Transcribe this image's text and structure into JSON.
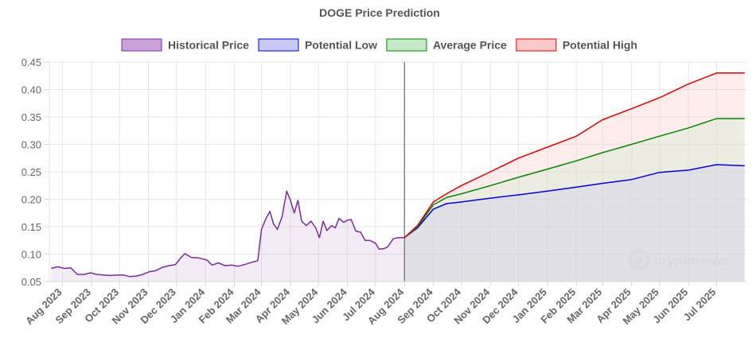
{
  "chart_data": {
    "type": "area",
    "title": "DOGE Price Prediction",
    "ylim": [
      0.05,
      0.45
    ],
    "y_ticks": [
      "0.05",
      "0.10",
      "0.15",
      "0.20",
      "0.25",
      "0.30",
      "0.35",
      "0.40",
      "0.45"
    ],
    "x_ticks": [
      "Aug 2023",
      "Sep 2023",
      "Oct 2023",
      "Nov 2023",
      "Dec 2023",
      "Jan 2024",
      "Feb 2024",
      "Mar 2024",
      "Apr 2024",
      "May 2024",
      "Jun 2024",
      "Jul 2024",
      "Aug 2024",
      "Sep 2024",
      "Oct 2024",
      "Nov 2024",
      "Dec 2024",
      "Jan 2025",
      "Feb 2025",
      "Mar 2025",
      "Apr 2025",
      "May 2025",
      "Jun 2025",
      "Jul 2025"
    ],
    "grid": true,
    "legend_position": "top-center",
    "divider_date": "2024-08-01",
    "series": [
      {
        "name": "Historical Price",
        "color": "#7b2c9e",
        "fill": "#c8a2d6",
        "points": [
          [
            "2023-07-20",
            0.074
          ],
          [
            "2023-07-27",
            0.077
          ],
          [
            "2023-08-03",
            0.074
          ],
          [
            "2023-08-10",
            0.075
          ],
          [
            "2023-08-17",
            0.063
          ],
          [
            "2023-08-24",
            0.063
          ],
          [
            "2023-08-31",
            0.066
          ],
          [
            "2023-09-07",
            0.063
          ],
          [
            "2023-09-14",
            0.062
          ],
          [
            "2023-09-21",
            0.061
          ],
          [
            "2023-09-28",
            0.062
          ],
          [
            "2023-10-05",
            0.062
          ],
          [
            "2023-10-12",
            0.059
          ],
          [
            "2023-10-19",
            0.06
          ],
          [
            "2023-10-26",
            0.063
          ],
          [
            "2023-11-02",
            0.068
          ],
          [
            "2023-11-09",
            0.07
          ],
          [
            "2023-11-16",
            0.076
          ],
          [
            "2023-11-23",
            0.079
          ],
          [
            "2023-11-30",
            0.081
          ],
          [
            "2023-12-05",
            0.092
          ],
          [
            "2023-12-10",
            0.101
          ],
          [
            "2023-12-17",
            0.094
          ],
          [
            "2023-12-25",
            0.093
          ],
          [
            "2024-01-03",
            0.089
          ],
          [
            "2024-01-08",
            0.08
          ],
          [
            "2024-01-15",
            0.084
          ],
          [
            "2024-01-22",
            0.079
          ],
          [
            "2024-01-29",
            0.08
          ],
          [
            "2024-02-05",
            0.078
          ],
          [
            "2024-02-12",
            0.081
          ],
          [
            "2024-02-19",
            0.085
          ],
          [
            "2024-02-26",
            0.088
          ],
          [
            "2024-03-01",
            0.145
          ],
          [
            "2024-03-05",
            0.162
          ],
          [
            "2024-03-10",
            0.178
          ],
          [
            "2024-03-14",
            0.155
          ],
          [
            "2024-03-18",
            0.145
          ],
          [
            "2024-03-23",
            0.168
          ],
          [
            "2024-03-28",
            0.215
          ],
          [
            "2024-04-01",
            0.198
          ],
          [
            "2024-04-05",
            0.175
          ],
          [
            "2024-04-09",
            0.198
          ],
          [
            "2024-04-13",
            0.16
          ],
          [
            "2024-04-18",
            0.152
          ],
          [
            "2024-04-23",
            0.16
          ],
          [
            "2024-04-28",
            0.148
          ],
          [
            "2024-05-02",
            0.13
          ],
          [
            "2024-05-06",
            0.16
          ],
          [
            "2024-05-10",
            0.143
          ],
          [
            "2024-05-15",
            0.152
          ],
          [
            "2024-05-19",
            0.148
          ],
          [
            "2024-05-23",
            0.165
          ],
          [
            "2024-05-28",
            0.158
          ],
          [
            "2024-06-01",
            0.162
          ],
          [
            "2024-06-05",
            0.163
          ],
          [
            "2024-06-10",
            0.142
          ],
          [
            "2024-06-15",
            0.14
          ],
          [
            "2024-06-20",
            0.125
          ],
          [
            "2024-06-25",
            0.125
          ],
          [
            "2024-07-01",
            0.12
          ],
          [
            "2024-07-05",
            0.109
          ],
          [
            "2024-07-10",
            0.11
          ],
          [
            "2024-07-14",
            0.113
          ],
          [
            "2024-07-20",
            0.128
          ],
          [
            "2024-07-25",
            0.13
          ],
          [
            "2024-08-01",
            0.13
          ]
        ]
      },
      {
        "name": "Potential Low",
        "color": "#0000dd",
        "fill": "#c8c8f5",
        "points": [
          [
            "2024-08-01",
            0.13
          ],
          [
            "2024-08-15",
            0.148
          ],
          [
            "2024-09-01",
            0.182
          ],
          [
            "2024-09-15",
            0.192
          ],
          [
            "2024-10-01",
            0.195
          ],
          [
            "2024-11-01",
            0.202
          ],
          [
            "2024-12-01",
            0.208
          ],
          [
            "2025-01-01",
            0.215
          ],
          [
            "2025-02-01",
            0.222
          ],
          [
            "2025-03-01",
            0.229
          ],
          [
            "2025-04-01",
            0.236
          ],
          [
            "2025-05-01",
            0.249
          ],
          [
            "2025-06-01",
            0.253
          ],
          [
            "2025-07-01",
            0.263
          ],
          [
            "2025-07-31",
            0.261
          ]
        ]
      },
      {
        "name": "Average Price",
        "color": "#008800",
        "fill": "#c6e8c6",
        "points": [
          [
            "2024-08-01",
            0.13
          ],
          [
            "2024-08-15",
            0.15
          ],
          [
            "2024-09-01",
            0.19
          ],
          [
            "2024-09-15",
            0.203
          ],
          [
            "2024-10-01",
            0.21
          ],
          [
            "2024-11-01",
            0.225
          ],
          [
            "2024-12-01",
            0.24
          ],
          [
            "2025-01-01",
            0.255
          ],
          [
            "2025-02-01",
            0.27
          ],
          [
            "2025-03-01",
            0.285
          ],
          [
            "2025-04-01",
            0.3
          ],
          [
            "2025-05-01",
            0.315
          ],
          [
            "2025-06-01",
            0.33
          ],
          [
            "2025-07-01",
            0.347
          ],
          [
            "2025-07-31",
            0.347
          ]
        ]
      },
      {
        "name": "Potential High",
        "color": "#dd0000",
        "fill": "#ffc8c8",
        "points": [
          [
            "2024-08-01",
            0.13
          ],
          [
            "2024-08-15",
            0.152
          ],
          [
            "2024-09-01",
            0.195
          ],
          [
            "2024-09-15",
            0.21
          ],
          [
            "2024-10-01",
            0.225
          ],
          [
            "2024-11-01",
            0.25
          ],
          [
            "2024-12-01",
            0.275
          ],
          [
            "2025-01-01",
            0.295
          ],
          [
            "2025-02-01",
            0.315
          ],
          [
            "2025-03-01",
            0.345
          ],
          [
            "2025-04-01",
            0.365
          ],
          [
            "2025-05-01",
            0.385
          ],
          [
            "2025-06-01",
            0.41
          ],
          [
            "2025-07-01",
            0.43
          ],
          [
            "2025-07-31",
            0.43
          ]
        ]
      }
    ]
  },
  "watermark": {
    "brand": "cryptonews"
  }
}
